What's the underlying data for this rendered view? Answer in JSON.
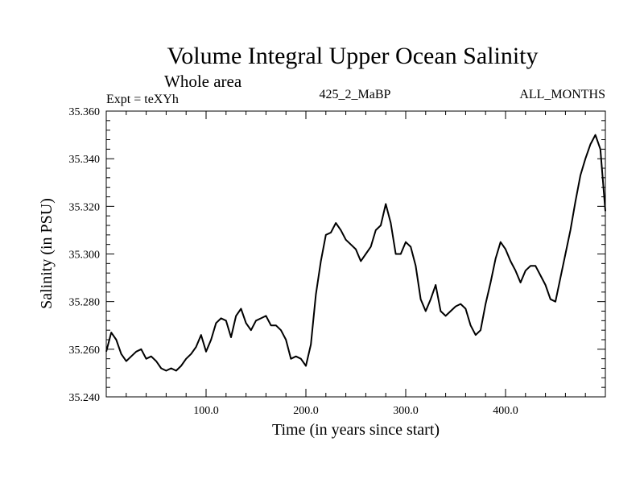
{
  "chart_data": {
    "type": "line",
    "title": "Volume Integral Upper Ocean Salinity",
    "subtitle": "Whole area",
    "experiment_label": "Expt = teXYh",
    "run_label": "425_2_MaBP",
    "period_label": "ALL_MONTHS",
    "xlabel": "Time (in years since start)",
    "ylabel": "Salinity (in PSU)",
    "xlim": [
      0,
      500
    ],
    "ylim": [
      35.24,
      35.36
    ],
    "x_ticks": [
      100,
      200,
      300,
      400
    ],
    "x_tick_labels": [
      "100.0",
      "200.0",
      "300.0",
      "400.0"
    ],
    "y_ticks": [
      35.24,
      35.26,
      35.28,
      35.3,
      35.32,
      35.34,
      35.36
    ],
    "y_tick_labels": [
      "35.240",
      "35.260",
      "35.280",
      "35.300",
      "35.320",
      "35.340",
      "35.360"
    ],
    "line_color": "#000000",
    "series": [
      {
        "name": "Salinity",
        "x": [
          0,
          5,
          10,
          15,
          20,
          25,
          30,
          35,
          40,
          45,
          50,
          55,
          60,
          65,
          70,
          75,
          80,
          85,
          90,
          95,
          100,
          105,
          110,
          115,
          120,
          125,
          130,
          135,
          140,
          145,
          150,
          155,
          160,
          165,
          170,
          175,
          180,
          185,
          190,
          195,
          200,
          205,
          210,
          215,
          220,
          225,
          230,
          235,
          240,
          245,
          250,
          255,
          260,
          265,
          270,
          275,
          280,
          285,
          290,
          295,
          300,
          305,
          310,
          315,
          320,
          325,
          330,
          335,
          340,
          345,
          350,
          355,
          360,
          365,
          370,
          375,
          380,
          385,
          390,
          395,
          400,
          405,
          410,
          415,
          420,
          425,
          430,
          435,
          440,
          445,
          450,
          455,
          460,
          465,
          470,
          475,
          480,
          485,
          490,
          495,
          500
        ],
        "values": [
          35.259,
          35.267,
          35.264,
          35.258,
          35.255,
          35.257,
          35.259,
          35.26,
          35.256,
          35.257,
          35.255,
          35.252,
          35.251,
          35.252,
          35.251,
          35.253,
          35.256,
          35.258,
          35.261,
          35.266,
          35.259,
          35.264,
          35.271,
          35.273,
          35.272,
          35.265,
          35.274,
          35.277,
          35.271,
          35.268,
          35.272,
          35.273,
          35.274,
          35.27,
          35.27,
          35.268,
          35.264,
          35.256,
          35.257,
          35.256,
          35.253,
          35.262,
          35.283,
          35.297,
          35.308,
          35.309,
          35.313,
          35.31,
          35.306,
          35.304,
          35.302,
          35.297,
          35.3,
          35.303,
          35.31,
          35.312,
          35.321,
          35.313,
          35.3,
          35.3,
          35.305,
          35.303,
          35.295,
          35.281,
          35.276,
          35.281,
          35.287,
          35.276,
          35.274,
          35.276,
          35.278,
          35.279,
          35.277,
          35.27,
          35.266,
          35.268,
          35.279,
          35.288,
          35.298,
          35.305,
          35.302,
          35.297,
          35.293,
          35.288,
          35.293,
          35.295,
          35.295,
          35.291,
          35.287,
          35.281,
          35.28,
          35.29,
          35.3,
          35.31,
          35.322,
          35.333,
          35.34,
          35.346,
          35.35,
          35.344,
          35.318
        ]
      }
    ]
  }
}
